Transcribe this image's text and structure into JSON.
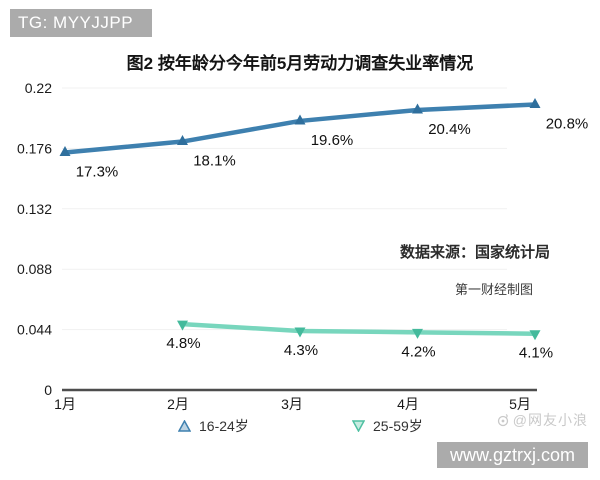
{
  "header_chip": {
    "text": "TG: MYYJJPP"
  },
  "chart_data": {
    "type": "line",
    "title": "图2 按年龄分今年前5月劳动力调查失业率情况",
    "categories": [
      "1月",
      "2月",
      "3月",
      "4月",
      "5月"
    ],
    "series": [
      {
        "name": "16-24岁",
        "marker": "triangle-up",
        "color": "#3e80af",
        "marker_color": "#2f6f9d",
        "values": [
          0.173,
          0.181,
          0.196,
          0.204,
          0.208
        ],
        "labels": [
          "17.3%",
          "18.1%",
          "19.6%",
          "20.4%",
          "20.8%"
        ]
      },
      {
        "name": "25-59岁",
        "marker": "triangle-down",
        "color": "#78d6bd",
        "marker_color": "#44ba9c",
        "values": [
          null,
          0.048,
          0.043,
          0.042,
          0.041
        ],
        "labels": [
          null,
          "4.8%",
          "4.3%",
          "4.2%",
          "4.1%"
        ]
      }
    ],
    "y_ticks": [
      "0",
      "0.044",
      "0.088",
      "0.132",
      "0.176",
      "0.22"
    ],
    "ylim": [
      0,
      0.22
    ],
    "grid": true,
    "legend_position": "bottom",
    "source_note": "数据来源：国家统计局",
    "credit_note": "第一财经制图"
  },
  "watermarks": {
    "weibo_handle": "@网友小浪",
    "site": "www.gztrxj.com"
  }
}
